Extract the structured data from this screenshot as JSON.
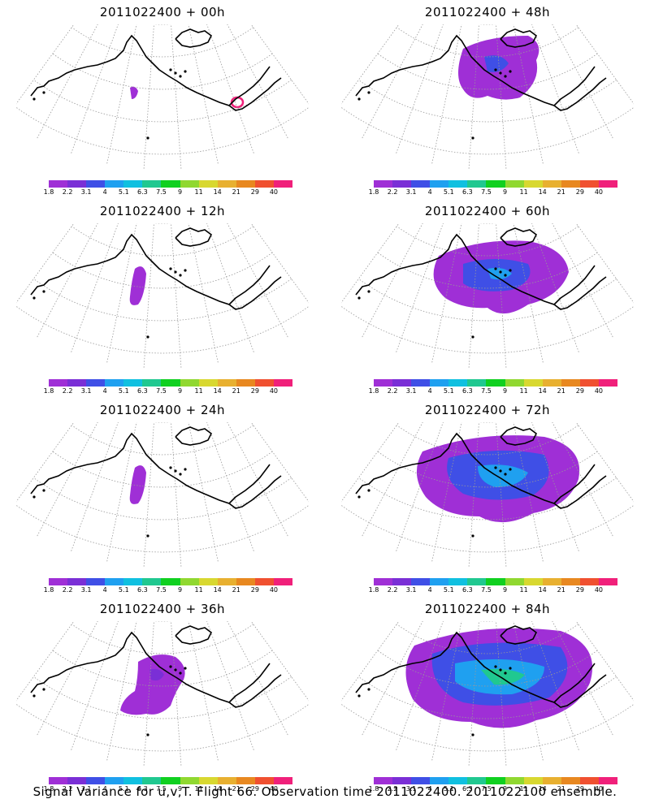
{
  "panels": [
    {
      "title": "2011022400 + 00h",
      "level": 0
    },
    {
      "title": "2011022400 + 48h",
      "level": 3
    },
    {
      "title": "2011022400 + 12h",
      "level": 1
    },
    {
      "title": "2011022400 + 60h",
      "level": 4
    },
    {
      "title": "2011022400 + 24h",
      "level": 1
    },
    {
      "title": "2011022400 + 72h",
      "level": 5
    },
    {
      "title": "2011022400 + 36h",
      "level": 2
    },
    {
      "title": "2011022400 + 84h",
      "level": 6
    }
  ],
  "colorbar": {
    "colors": [
      "#9f2fd6",
      "#7a2fd6",
      "#3f4fe6",
      "#1fa0f0",
      "#10c0e0",
      "#20c890",
      "#10d020",
      "#90d830",
      "#d8d830",
      "#e8b030",
      "#e88820",
      "#f05030",
      "#f0207a"
    ],
    "labels": [
      "1.8",
      "2.2",
      "3.1",
      "4",
      "5.1",
      "6.3",
      "7.5",
      "9",
      "11",
      "14",
      "21",
      "29",
      "40"
    ]
  },
  "footer": "Signal Variance for u,v,T. Flight 66. Observation time 2011022400. 2011022100 ensemble."
}
